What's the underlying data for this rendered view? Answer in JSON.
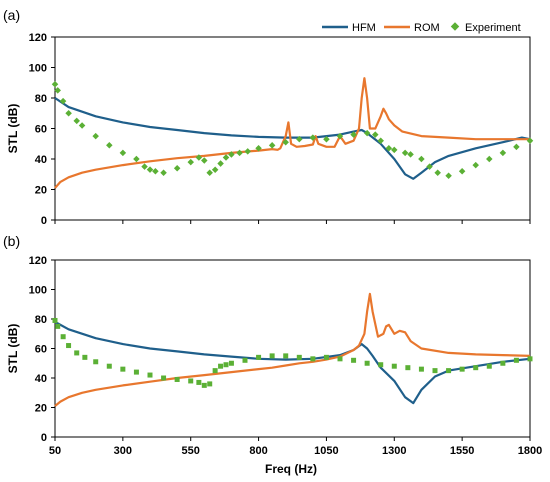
{
  "figure": {
    "legend": [
      "HFM",
      "ROM",
      "Experiment"
    ],
    "xlabel": "Freq (Hz)"
  },
  "chart_data": [
    {
      "panel": "(a)",
      "type": "line",
      "ylabel": "STL (dB)",
      "xlim": [
        50,
        1800
      ],
      "ylim": [
        0,
        120
      ],
      "xticks": [
        50,
        300,
        550,
        800,
        1050,
        1300,
        1550,
        1800
      ],
      "yticks": [
        0,
        20,
        40,
        60,
        80,
        100,
        120
      ],
      "legend_position": "top-right",
      "grid": false,
      "series": [
        {
          "name": "HFM",
          "color": "#1f5f8b",
          "marker": "line",
          "x": [
            50,
            100,
            200,
            300,
            400,
            500,
            600,
            700,
            800,
            900,
            1000,
            1100,
            1150,
            1180,
            1200,
            1250,
            1300,
            1340,
            1370,
            1400,
            1450,
            1500,
            1600,
            1700,
            1770,
            1800
          ],
          "y": [
            80,
            74,
            68,
            64,
            61,
            59,
            57,
            55.5,
            54.5,
            54,
            54,
            56,
            58,
            59,
            57,
            50,
            40,
            30,
            27,
            31,
            38,
            42,
            47,
            51,
            54,
            53
          ]
        },
        {
          "name": "ROM",
          "color": "#e8772e",
          "marker": "line",
          "x": [
            50,
            70,
            100,
            150,
            200,
            300,
            400,
            500,
            600,
            700,
            800,
            850,
            870,
            880,
            900,
            910,
            920,
            940,
            970,
            1000,
            1010,
            1020,
            1050,
            1080,
            1100,
            1120,
            1150,
            1170,
            1180,
            1190,
            1200,
            1210,
            1230,
            1250,
            1260,
            1270,
            1280,
            1300,
            1330,
            1400,
            1500,
            1600,
            1700,
            1800
          ],
          "y": [
            21,
            25,
            28,
            31,
            33,
            36,
            38.5,
            40.5,
            42,
            44,
            45.5,
            46.5,
            46,
            47,
            55,
            64,
            50,
            48,
            48.5,
            49.5,
            55,
            50,
            48,
            48,
            55,
            50,
            52,
            60,
            80,
            93,
            80,
            60,
            60,
            68,
            73,
            70,
            66,
            62,
            58,
            55,
            54,
            53,
            53,
            53
          ]
        },
        {
          "name": "Experiment",
          "color": "#5bb035",
          "marker": "diamond",
          "x": [
            50,
            60,
            80,
            100,
            130,
            150,
            200,
            250,
            300,
            350,
            380,
            400,
            420,
            450,
            500,
            550,
            580,
            600,
            620,
            640,
            660,
            680,
            700,
            730,
            760,
            800,
            850,
            900,
            950,
            1000,
            1050,
            1100,
            1150,
            1200,
            1230,
            1250,
            1280,
            1300,
            1340,
            1360,
            1400,
            1430,
            1460,
            1500,
            1550,
            1600,
            1650,
            1700,
            1750,
            1800
          ],
          "y": [
            89,
            85,
            78,
            70,
            65,
            62,
            55,
            49,
            44,
            40,
            35,
            33,
            32,
            31,
            34,
            38,
            41,
            39,
            31,
            33,
            37,
            41,
            43,
            44,
            45,
            47,
            49,
            51,
            53,
            54,
            53,
            55,
            56,
            57,
            56,
            52,
            47,
            46,
            44,
            43,
            40,
            35,
            31,
            29,
            32,
            36,
            40,
            44,
            48,
            52
          ]
        }
      ]
    },
    {
      "panel": "(b)",
      "type": "line",
      "ylabel": "STL (dB)",
      "xlabel": "Freq (Hz)",
      "xlim": [
        50,
        1800
      ],
      "ylim": [
        0,
        120
      ],
      "xticks": [
        50,
        300,
        550,
        800,
        1050,
        1300,
        1550,
        1800
      ],
      "yticks": [
        0,
        20,
        40,
        60,
        80,
        100,
        120
      ],
      "grid": false,
      "series": [
        {
          "name": "HFM",
          "color": "#1f5f8b",
          "marker": "line",
          "x": [
            50,
            100,
            200,
            300,
            400,
            500,
            600,
            700,
            800,
            900,
            1000,
            1100,
            1150,
            1180,
            1200,
            1220,
            1250,
            1300,
            1340,
            1370,
            1400,
            1450,
            1500,
            1600,
            1700,
            1800
          ],
          "y": [
            78,
            73,
            67,
            63,
            60,
            58,
            56,
            54.5,
            53,
            52.5,
            53,
            55.5,
            59,
            63,
            60,
            55,
            47,
            38,
            27,
            23,
            32,
            41,
            45,
            48,
            51,
            53
          ]
        },
        {
          "name": "ROM",
          "color": "#e8772e",
          "marker": "line",
          "x": [
            50,
            70,
            100,
            150,
            200,
            300,
            400,
            500,
            600,
            700,
            800,
            850,
            900,
            950,
            1000,
            1050,
            1100,
            1150,
            1170,
            1190,
            1200,
            1210,
            1220,
            1240,
            1260,
            1270,
            1280,
            1300,
            1320,
            1340,
            1360,
            1400,
            1500,
            1600,
            1700,
            1800
          ],
          "y": [
            21,
            24,
            27,
            30,
            32,
            35,
            37.5,
            40,
            42,
            44,
            46,
            47,
            48.5,
            50,
            51,
            52.5,
            54.5,
            59,
            62,
            70,
            85,
            97,
            85,
            68,
            70,
            75,
            76,
            70,
            72,
            71,
            65,
            60,
            57,
            56,
            55.5,
            55
          ]
        },
        {
          "name": "Experiment",
          "color": "#5bb035",
          "marker": "square",
          "x": [
            50,
            60,
            80,
            100,
            130,
            160,
            200,
            250,
            300,
            350,
            400,
            450,
            500,
            550,
            580,
            600,
            620,
            640,
            660,
            680,
            700,
            750,
            800,
            850,
            900,
            950,
            1000,
            1050,
            1100,
            1150,
            1200,
            1250,
            1300,
            1350,
            1400,
            1450,
            1500,
            1550,
            1600,
            1650,
            1700,
            1750,
            1800
          ],
          "y": [
            79,
            75,
            68,
            62,
            57,
            54,
            51,
            48,
            46,
            44,
            42,
            40,
            39,
            38,
            37,
            35,
            36,
            45,
            48,
            49,
            50,
            52,
            54,
            55,
            55,
            54,
            53,
            54,
            53,
            52,
            50,
            49,
            48,
            47,
            46,
            45,
            45,
            46,
            47,
            48,
            50,
            52,
            53
          ]
        }
      ]
    }
  ]
}
